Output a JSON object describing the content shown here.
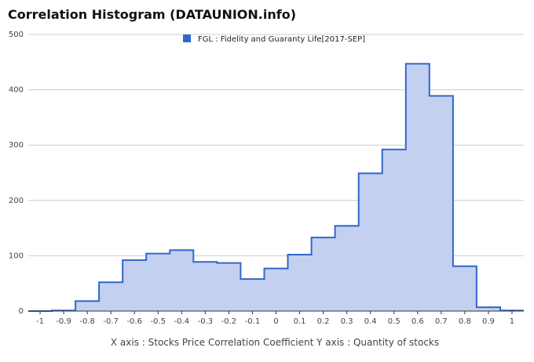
{
  "title": "Correlation Histogram (DATAUNION.info)",
  "colors": {
    "fill": "#c3d0f0",
    "stroke": "#3366cc",
    "grid": "#cccccc",
    "axis": "#333333"
  },
  "caption": "X axis : Stocks Price Correlation Coefficient  Y axis : Quantity of stocks",
  "chart_data": {
    "type": "area",
    "title": "Correlation Histogram (DATAUNION.info)",
    "xlabel": "X axis : Stocks Price Correlation Coefficient",
    "ylabel": "Y axis : Quantity of stocks",
    "legend": "FGL : Fidelity and Guaranty Life[2017-SEP]",
    "legend_position": "top",
    "grid": true,
    "xlim": [
      -1.05,
      1.05
    ],
    "ylim": [
      0,
      500
    ],
    "x_ticks": [
      -1,
      -0.9,
      -0.8,
      -0.7,
      -0.6,
      -0.5,
      -0.4,
      -0.3,
      -0.2,
      -0.1,
      0,
      0.1,
      0.2,
      0.3,
      0.4,
      0.5,
      0.6,
      0.7,
      0.8,
      0.9,
      1
    ],
    "x_tick_labels": [
      "-1",
      "-0.9",
      "-0.8",
      "-0.7",
      "-0.6",
      "-0.5",
      "-0.4",
      "-0.3",
      "-0.2",
      "-0.1",
      "0",
      "0.1",
      "0.2",
      "0.3",
      "0.4",
      "0.5",
      "0.6",
      "0.7",
      "0.8",
      "0.9",
      "1"
    ],
    "y_ticks": [
      0,
      100,
      200,
      300,
      400,
      500
    ],
    "y_tick_labels": [
      "0",
      "100",
      "200",
      "300",
      "400",
      "500"
    ],
    "series": [
      {
        "name": "FGL : Fidelity and Guaranty Life[2017-SEP]",
        "x": [
          -1,
          -0.9,
          -0.8,
          -0.7,
          -0.6,
          -0.5,
          -0.4,
          -0.3,
          -0.2,
          -0.1,
          0,
          0.1,
          0.2,
          0.3,
          0.4,
          0.5,
          0.6,
          0.7,
          0.8,
          0.9,
          1
        ],
        "values": [
          0,
          1,
          18,
          52,
          92,
          104,
          110,
          89,
          87,
          58,
          77,
          102,
          133,
          154,
          249,
          292,
          447,
          389,
          81,
          7,
          1
        ]
      }
    ]
  }
}
